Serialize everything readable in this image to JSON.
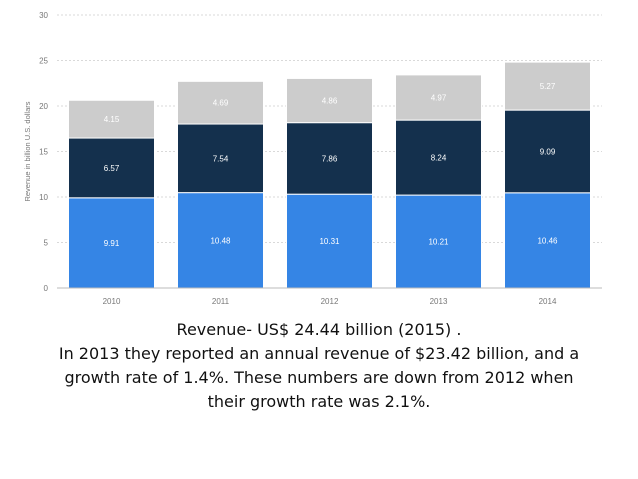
{
  "chart_data": {
    "type": "bar",
    "stacked": true,
    "title": "",
    "xlabel": "",
    "ylabel": "Revenue in billion U.S. dollars",
    "ylim": [
      0,
      30
    ],
    "yticks": [
      0,
      5,
      10,
      15,
      20,
      25,
      30
    ],
    "grid": true,
    "legend": "none",
    "categories": [
      "2010",
      "2011",
      "2012",
      "2013",
      "2014"
    ],
    "series": [
      {
        "name": "bottom segment",
        "color": "#3585e5",
        "label_color": "#ffffff",
        "values": [
          9.91,
          10.48,
          10.31,
          10.21,
          10.46
        ]
      },
      {
        "name": "middle segment",
        "color": "#14304d",
        "label_color": "#ffffff",
        "values": [
          6.57,
          7.54,
          7.86,
          8.24,
          9.09
        ]
      },
      {
        "name": "top segment",
        "color": "#cccccc",
        "label_color": "#ffffff",
        "values": [
          4.15,
          4.69,
          4.86,
          4.97,
          5.27
        ]
      }
    ],
    "colors": {
      "grid": "#d9d9d9",
      "axis": "#bbbbbb",
      "tick_text": "#777777"
    }
  },
  "caption": {
    "line1": "Revenue-  US$ 24.44 billion (2015) .",
    "line2": "In 2013 they reported an annual revenue of $23.42 billion, and a",
    "line3": "growth rate of 1.4%. These numbers are down from 2012 when",
    "line4": "their growth rate was 2.1%."
  }
}
